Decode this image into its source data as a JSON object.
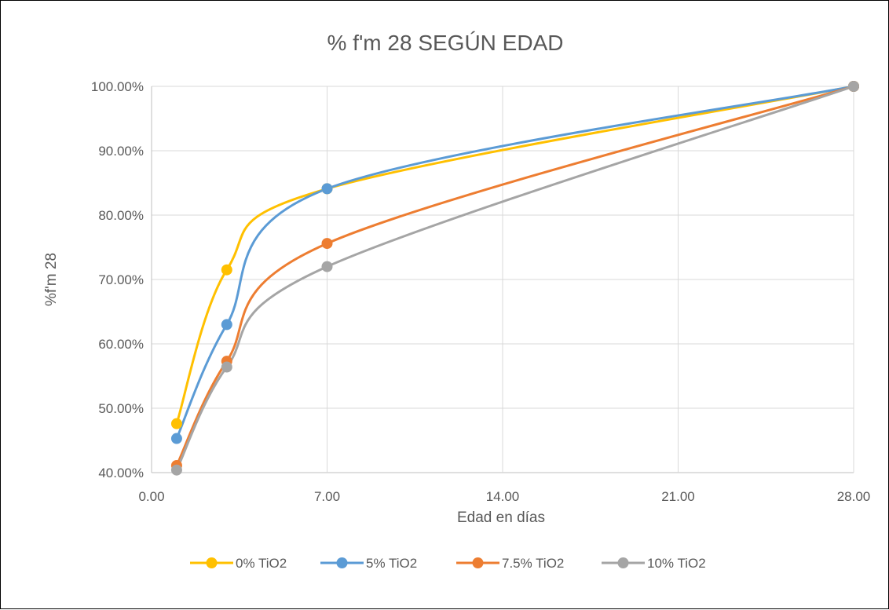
{
  "chart_data": {
    "type": "line",
    "title": "% f'm 28 SEGÚN EDAD",
    "xlabel": "Edad en días",
    "ylabel": "%f'm 28",
    "xlim": [
      0,
      28
    ],
    "ylim": [
      0.4,
      1.0
    ],
    "x_ticks": [
      "0.00",
      "7.00",
      "14.00",
      "21.00",
      "28.00"
    ],
    "y_ticks": [
      "40.00%",
      "50.00%",
      "60.00%",
      "70.00%",
      "80.00%",
      "90.00%",
      "100.00%"
    ],
    "grid": true,
    "smooth": true,
    "legend_position": "bottom",
    "x": [
      1,
      3,
      7,
      28
    ],
    "series": [
      {
        "name": "0% TiO2",
        "color": "#FFC000",
        "values": [
          0.476,
          0.715,
          0.841,
          1.0
        ]
      },
      {
        "name": "5% TiO2",
        "color": "#5B9BD5",
        "values": [
          0.453,
          0.63,
          0.841,
          1.0
        ]
      },
      {
        "name": "7.5% TiO2",
        "color": "#ED7D31",
        "values": [
          0.411,
          0.573,
          0.756,
          1.0
        ]
      },
      {
        "name": "10% TiO2",
        "color": "#A5A5A5",
        "values": [
          0.404,
          0.564,
          0.72,
          1.0
        ]
      }
    ]
  }
}
